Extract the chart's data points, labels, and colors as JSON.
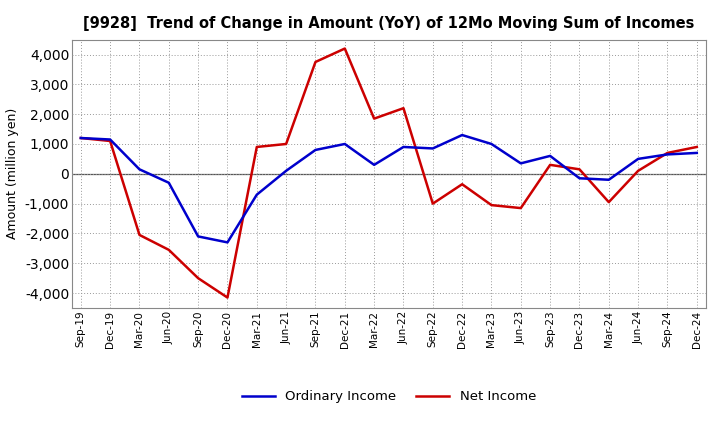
{
  "title": "[9928]  Trend of Change in Amount (YoY) of 12Mo Moving Sum of Incomes",
  "ylabel": "Amount (million yen)",
  "x_labels": [
    "Sep-19",
    "Dec-19",
    "Mar-20",
    "Jun-20",
    "Sep-20",
    "Dec-20",
    "Mar-21",
    "Jun-21",
    "Sep-21",
    "Dec-21",
    "Mar-22",
    "Jun-22",
    "Sep-22",
    "Dec-22",
    "Mar-23",
    "Jun-23",
    "Sep-23",
    "Dec-23",
    "Mar-24",
    "Jun-24",
    "Sep-24",
    "Dec-24"
  ],
  "ordinary_income": [
    1200,
    1150,
    150,
    -300,
    -2100,
    -2300,
    -700,
    100,
    800,
    1000,
    300,
    900,
    850,
    1300,
    1000,
    350,
    600,
    -150,
    -200,
    500,
    650,
    700
  ],
  "net_income": [
    1200,
    1100,
    -2050,
    -2550,
    -3500,
    -4150,
    900,
    1000,
    3750,
    4200,
    1850,
    2200,
    -1000,
    -350,
    -1050,
    -1150,
    300,
    150,
    -950,
    100,
    700,
    900
  ],
  "ordinary_income_color": "#0000cc",
  "net_income_color": "#cc0000",
  "ylim": [
    -4500,
    4500
  ],
  "yticks": [
    -4000,
    -3000,
    -2000,
    -1000,
    0,
    1000,
    2000,
    3000,
    4000
  ],
  "legend_labels": [
    "Ordinary Income",
    "Net Income"
  ],
  "background_color": "#ffffff",
  "grid_color": "#999999",
  "line_width": 1.8
}
